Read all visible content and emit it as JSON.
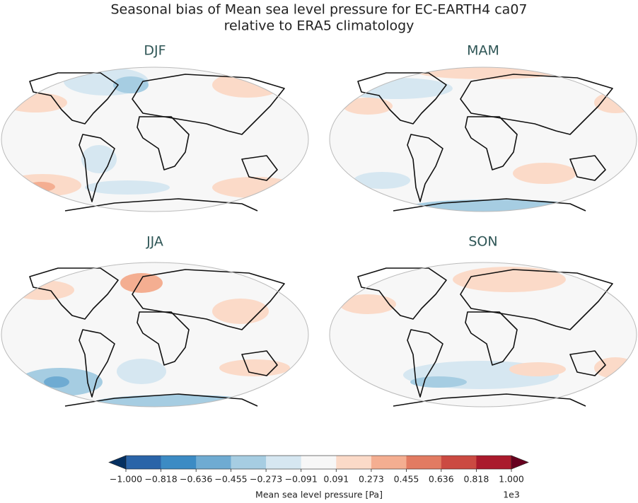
{
  "title_lines": [
    "Seasonal bias of Mean sea level pressure for EC-EARTH4 ca07",
    "relative to ERA5 climatology"
  ],
  "panels": [
    {
      "title": "DJF"
    },
    {
      "title": "MAM"
    },
    {
      "title": "JJA"
    },
    {
      "title": "SON"
    }
  ],
  "colorbar": {
    "label": "Mean sea level pressure [Pa]",
    "offset_label": "1e3",
    "ticks": [
      {
        "value": -1.0,
        "label": "−1.000"
      },
      {
        "value": -0.818,
        "label": "−0.818"
      },
      {
        "value": -0.636,
        "label": "−0.636"
      },
      {
        "value": -0.455,
        "label": "−0.455"
      },
      {
        "value": -0.273,
        "label": "−0.273"
      },
      {
        "value": -0.091,
        "label": "−0.091"
      },
      {
        "value": 0.091,
        "label": "0.091"
      },
      {
        "value": 0.273,
        "label": "0.273"
      },
      {
        "value": 0.455,
        "label": "0.455"
      },
      {
        "value": 0.636,
        "label": "0.636"
      },
      {
        "value": 0.818,
        "label": "0.818"
      },
      {
        "value": 1.0,
        "label": "1.000"
      }
    ],
    "colors": [
      "#2a64a8",
      "#3c8bc4",
      "#6fabd2",
      "#a6cde2",
      "#d6e7f1",
      "#f7f7f7",
      "#fbdac8",
      "#f4ae91",
      "#e27b62",
      "#cb4a42",
      "#aa1a2c"
    ],
    "extend_low_color": "#053061",
    "extend_high_color": "#67001f"
  }
}
